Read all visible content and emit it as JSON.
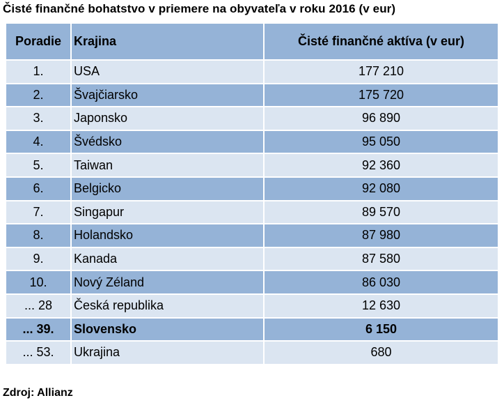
{
  "title": "Čisté finančné bohatstvo v priemere na obyvateľa v roku 2016 (v eur)",
  "table": {
    "headers": {
      "rank": "Poradie",
      "country": "Krajina",
      "value": "Čisté finančné aktíva (v eur)"
    },
    "rows": [
      {
        "rank": "1.",
        "country": "USA",
        "value": "177 210"
      },
      {
        "rank": "2.",
        "country": "Švajčiarsko",
        "value": "175 720"
      },
      {
        "rank": "3.",
        "country": "Japonsko",
        "value": "96 890"
      },
      {
        "rank": "4.",
        "country": "Švédsko",
        "value": "95 050"
      },
      {
        "rank": "5.",
        "country": "Taiwan",
        "value": "92 360"
      },
      {
        "rank": "6.",
        "country": "Belgicko",
        "value": "92 080"
      },
      {
        "rank": "7.",
        "country": "Singapur",
        "value": "89 570"
      },
      {
        "rank": "8.",
        "country": "Holandsko",
        "value": "87 980"
      },
      {
        "rank": "9.",
        "country": "Kanada",
        "value": "87 580"
      },
      {
        "rank": "10.",
        "country": "Nový Zéland",
        "value": "86 030"
      },
      {
        "rank": "... 28",
        "country": "Česká republika",
        "value": "12 630"
      },
      {
        "rank": "... 39.",
        "country": "Slovensko",
        "value": "6 150"
      },
      {
        "rank": "... 53.",
        "country": "Ukrajina",
        "value": "680"
      }
    ]
  },
  "source": "Zdroj: Allianz",
  "colors": {
    "header_bg": "#95b3d7",
    "row_light": "#dbe5f1",
    "row_dark": "#95b3d7"
  }
}
